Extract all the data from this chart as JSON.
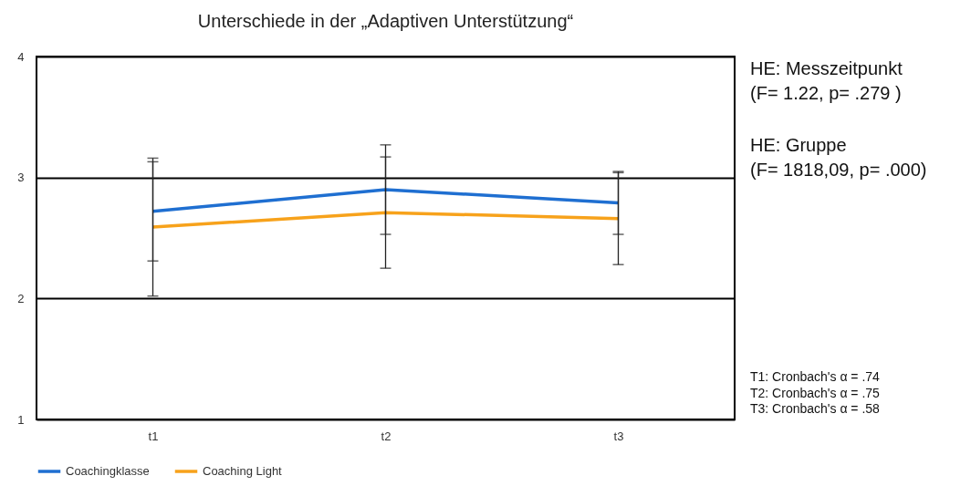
{
  "chart_data": {
    "type": "line",
    "title": "Unterschiede in der „Adaptiven Unterstützung“",
    "categories": [
      "t1",
      "t2",
      "t3"
    ],
    "series": [
      {
        "name": "Coachingklasse",
        "color": "#1f6fd1",
        "values": [
          2.72,
          2.9,
          2.79
        ],
        "errors": [
          0.41,
          0.37,
          0.26
        ]
      },
      {
        "name": "Coaching Light",
        "color": "#f7a21b",
        "values": [
          2.59,
          2.71,
          2.66
        ],
        "errors": [
          0.57,
          0.46,
          0.38
        ]
      }
    ],
    "ylim": [
      1,
      4
    ],
    "yticks": [
      1,
      2,
      3,
      4
    ],
    "grid": "y",
    "legend": "bottom",
    "marker": "none",
    "line_style": "solid",
    "annotations": [
      "HE: Messzeitpunkt\n(F= 1.22, p= .279 )",
      "HE: Gruppe\n(F= 1818,09, p= .000)",
      "T1: Cronbach's α = .74\nT2: Cronbach's α = .75\nT3: Cronbach's α = .58"
    ]
  }
}
